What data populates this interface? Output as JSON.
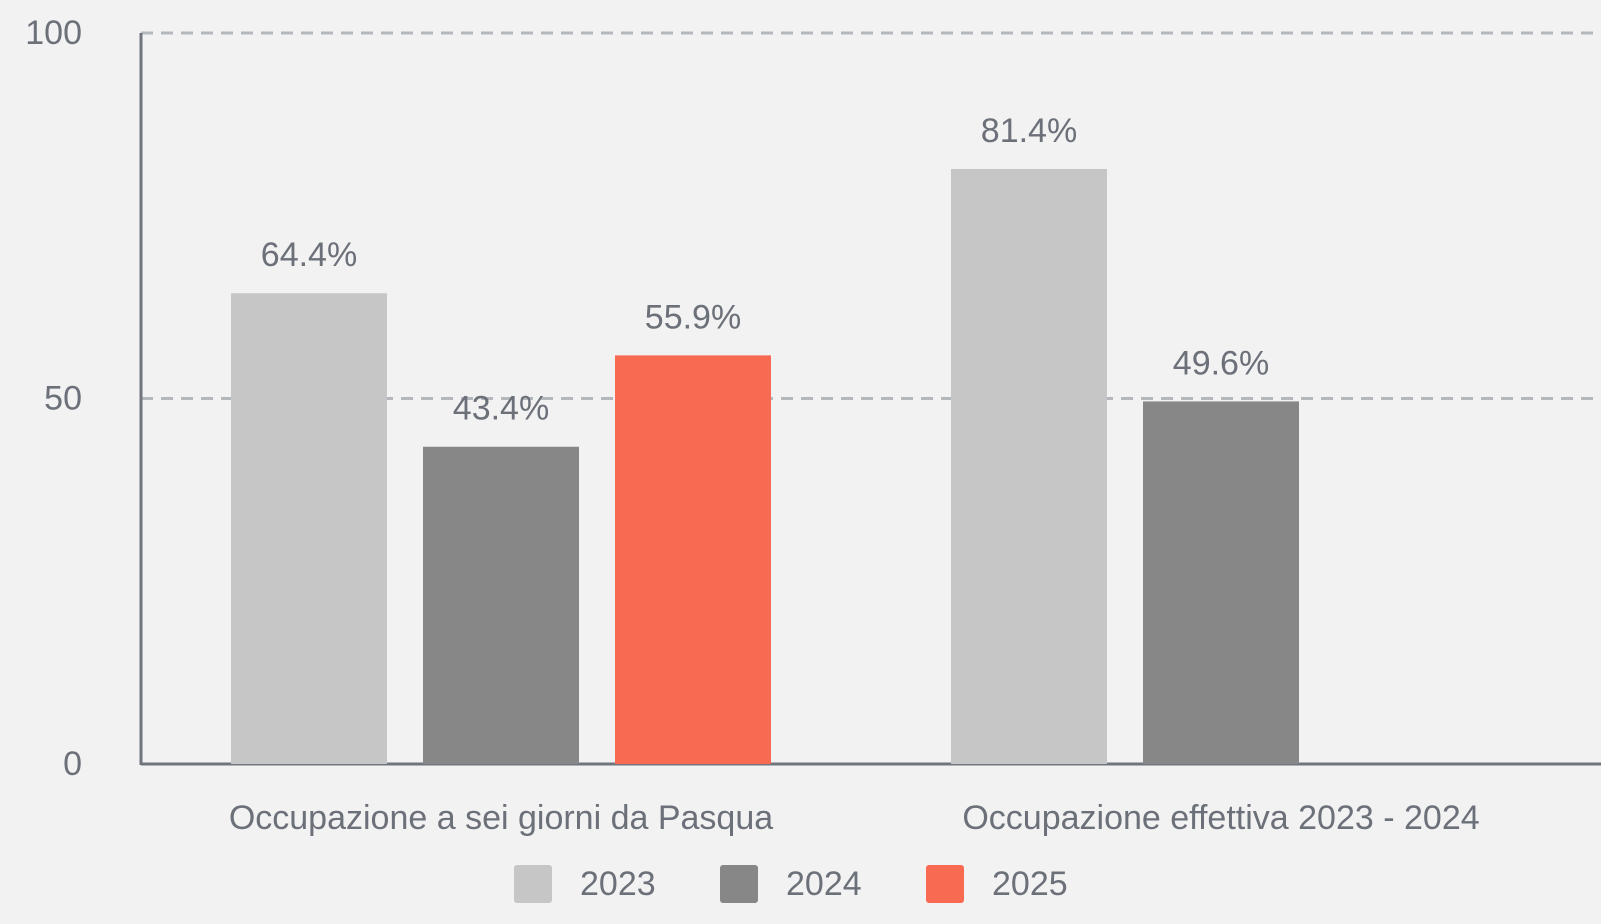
{
  "chart_data": {
    "type": "bar",
    "categories": [
      "Occupazione a sei giorni da Pasqua",
      "Occupazione effettiva 2023 - 2024"
    ],
    "series": [
      {
        "name": "2023",
        "color": "#c6c6c6",
        "values": [
          64.4,
          81.4
        ],
        "value_labels": [
          "64.4%",
          "81.4%"
        ]
      },
      {
        "name": "2024",
        "color": "#878787",
        "values": [
          43.4,
          49.6
        ],
        "value_labels": [
          "43.4%",
          "49.6%"
        ]
      },
      {
        "name": "2025",
        "color": "#f96a53",
        "values": [
          55.9,
          null
        ],
        "value_labels": [
          "55.9%",
          null
        ]
      }
    ],
    "ylim": [
      0,
      100
    ],
    "yticks": [
      0,
      50,
      100
    ],
    "grid": true,
    "legend": "bottom"
  }
}
